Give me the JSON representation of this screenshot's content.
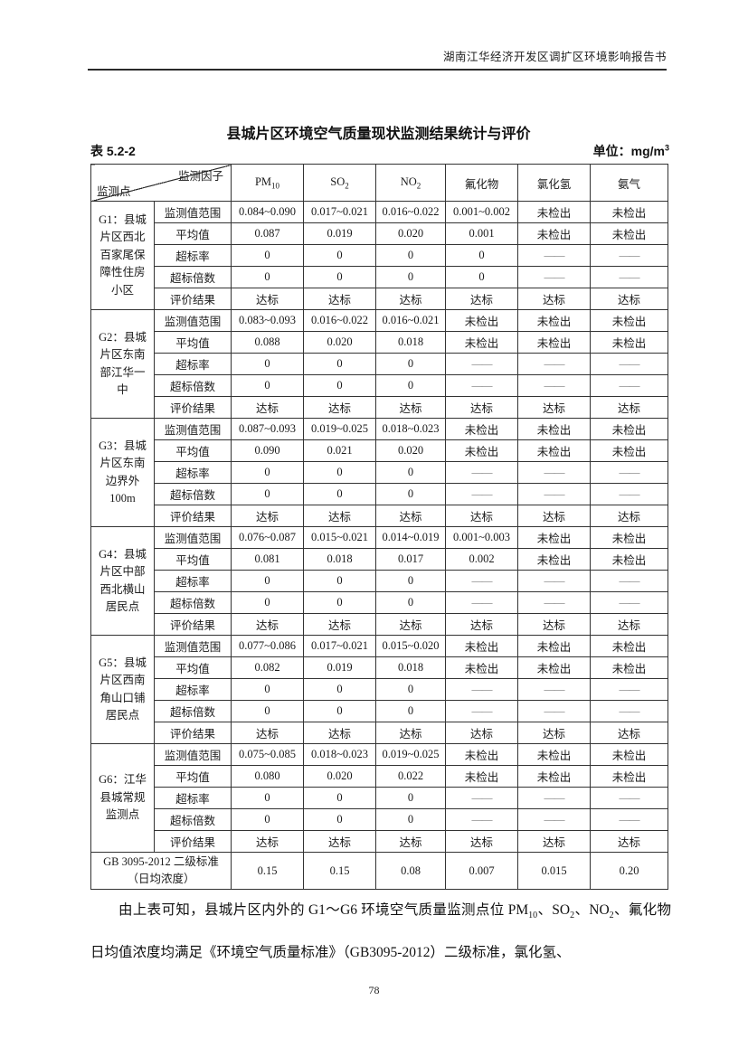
{
  "page": {
    "header": "湖南江华经济开发区调扩区环境影响报告书",
    "page_number": "78"
  },
  "table": {
    "title": "县城片区环境空气质量现状监测结果统计与评价",
    "label": "表 5.2-2",
    "unit_prefix": "单位：mg/m",
    "unit_sup": "3",
    "corner_top": "监测因子",
    "corner_bottom": "监测点",
    "columns": [
      {
        "base": "PM",
        "sub": "10"
      },
      {
        "base": "SO",
        "sub": "2"
      },
      {
        "base": "NO",
        "sub": "2"
      },
      {
        "base": "氟化物",
        "sub": ""
      },
      {
        "base": "氯化氢",
        "sub": ""
      },
      {
        "base": "氨气",
        "sub": ""
      }
    ],
    "row_labels": [
      "监测值范围",
      "平均值",
      "超标率",
      "超标倍数",
      "评价结果"
    ],
    "groups": [
      {
        "point_lines": [
          "G1：县城",
          "片区西北",
          "百家尾保",
          "障性住房",
          "小区"
        ],
        "rows": [
          [
            "0.084~0.090",
            "0.017~0.021",
            "0.016~0.022",
            "0.001~0.002",
            "未检出",
            "未检出"
          ],
          [
            "0.087",
            "0.019",
            "0.020",
            "0.001",
            "未检出",
            "未检出"
          ],
          [
            "0",
            "0",
            "0",
            "0",
            "——",
            "——"
          ],
          [
            "0",
            "0",
            "0",
            "0",
            "——",
            "——"
          ],
          [
            "达标",
            "达标",
            "达标",
            "达标",
            "达标",
            "达标"
          ]
        ]
      },
      {
        "point_lines": [
          "G2：县城",
          "片区东南",
          "部江华一",
          "中"
        ],
        "rows": [
          [
            "0.083~0.093",
            "0.016~0.022",
            "0.016~0.021",
            "未检出",
            "未检出",
            "未检出"
          ],
          [
            "0.088",
            "0.020",
            "0.018",
            "未检出",
            "未检出",
            "未检出"
          ],
          [
            "0",
            "0",
            "0",
            "——",
            "——",
            "——"
          ],
          [
            "0",
            "0",
            "0",
            "——",
            "——",
            "——"
          ],
          [
            "达标",
            "达标",
            "达标",
            "达标",
            "达标",
            "达标"
          ]
        ]
      },
      {
        "point_lines": [
          "G3：县城",
          "片区东南",
          "边界外",
          "100m"
        ],
        "rows": [
          [
            "0.087~0.093",
            "0.019~0.025",
            "0.018~0.023",
            "未检出",
            "未检出",
            "未检出"
          ],
          [
            "0.090",
            "0.021",
            "0.020",
            "未检出",
            "未检出",
            "未检出"
          ],
          [
            "0",
            "0",
            "0",
            "——",
            "——",
            "——"
          ],
          [
            "0",
            "0",
            "0",
            "——",
            "——",
            "——"
          ],
          [
            "达标",
            "达标",
            "达标",
            "达标",
            "达标",
            "达标"
          ]
        ]
      },
      {
        "point_lines": [
          "G4：县城",
          "片区中部",
          "西北横山",
          "居民点"
        ],
        "rows": [
          [
            "0.076~0.087",
            "0.015~0.021",
            "0.014~0.019",
            "0.001~0.003",
            "未检出",
            "未检出"
          ],
          [
            "0.081",
            "0.018",
            "0.017",
            "0.002",
            "未检出",
            "未检出"
          ],
          [
            "0",
            "0",
            "0",
            "——",
            "——",
            "——"
          ],
          [
            "0",
            "0",
            "0",
            "——",
            "——",
            "——"
          ],
          [
            "达标",
            "达标",
            "达标",
            "达标",
            "达标",
            "达标"
          ]
        ]
      },
      {
        "point_lines": [
          "G5：县城",
          "片区西南",
          "角山口铺",
          "居民点"
        ],
        "rows": [
          [
            "0.077~0.086",
            "0.017~0.021",
            "0.015~0.020",
            "未检出",
            "未检出",
            "未检出"
          ],
          [
            "0.082",
            "0.019",
            "0.018",
            "未检出",
            "未检出",
            "未检出"
          ],
          [
            "0",
            "0",
            "0",
            "——",
            "——",
            "——"
          ],
          [
            "0",
            "0",
            "0",
            "——",
            "——",
            "——"
          ],
          [
            "达标",
            "达标",
            "达标",
            "达标",
            "达标",
            "达标"
          ]
        ]
      },
      {
        "point_lines": [
          "G6：江华",
          "县城常规",
          "监测点"
        ],
        "rows": [
          [
            "0.075~0.085",
            "0.018~0.023",
            "0.019~0.025",
            "未检出",
            "未检出",
            "未检出"
          ],
          [
            "0.080",
            "0.020",
            "0.022",
            "未检出",
            "未检出",
            "未检出"
          ],
          [
            "0",
            "0",
            "0",
            "——",
            "——",
            "——"
          ],
          [
            "0",
            "0",
            "0",
            "——",
            "——",
            "——"
          ],
          [
            "达标",
            "达标",
            "达标",
            "达标",
            "达标",
            "达标"
          ]
        ]
      }
    ],
    "standard_row": {
      "label_lines": [
        "GB 3095-2012 二级标准",
        "（日均浓度）"
      ],
      "values": [
        "0.15",
        "0.15",
        "0.08",
        "0.007",
        "0.015",
        "0.20"
      ]
    }
  },
  "paragraph": {
    "segments": [
      {
        "text": "由上表可知，县城片区内外的 G1～G6 环境空气质量监测点位 PM"
      },
      {
        "text": "10",
        "sub": true
      },
      {
        "text": "、SO"
      },
      {
        "text": "2",
        "sub": true
      },
      {
        "text": "、NO"
      },
      {
        "text": "2",
        "sub": true
      },
      {
        "text": "、氟化物日均值浓度均满足《环境空气质量标准》（GB3095-2012）二级标准，氯化氢、"
      }
    ]
  }
}
